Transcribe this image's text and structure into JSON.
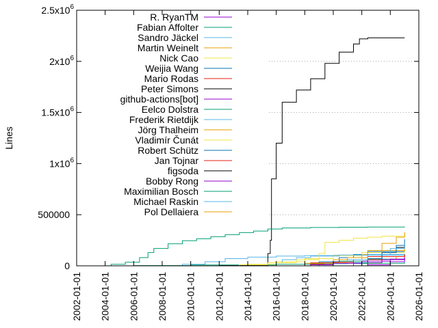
{
  "chart_data": {
    "type": "line",
    "title": "",
    "xlabel": "",
    "ylabel": "Lines",
    "x_ticks": [
      "2002-01-01",
      "2004-01-01",
      "2006-01-01",
      "2008-01-01",
      "2010-01-01",
      "2012-01-01",
      "2014-01-01",
      "2016-01-01",
      "2018-01-01",
      "2020-01-01",
      "2022-01-01",
      "2024-01-01",
      "2026-01-01"
    ],
    "y_ticks": [
      {
        "value": 0,
        "base": "0",
        "sup": ""
      },
      {
        "value": 500000,
        "base": "500000",
        "sup": ""
      },
      {
        "value": 1000000,
        "base": "1x10",
        "sup": "6"
      },
      {
        "value": 1500000,
        "base": "1.5x10",
        "sup": "6"
      },
      {
        "value": 2000000,
        "base": "2x10",
        "sup": "6"
      },
      {
        "value": 2500000,
        "base": "2.5x10",
        "sup": "6"
      }
    ],
    "xlim": [
      "2002-01-01",
      "2026-01-01"
    ],
    "ylim": [
      0,
      2500000
    ],
    "grid": "dotted, visible only right of the legend",
    "legend_position": "top-left (right-aligned labels)",
    "series": [
      {
        "name": "R. RyanTM",
        "color": "#9400d3",
        "points": [
          [
            "2017-01-01",
            0
          ],
          [
            "2018-06-01",
            10000
          ],
          [
            "2020-01-01",
            25000
          ],
          [
            "2022-01-01",
            45000
          ],
          [
            "2024-01-01",
            65000
          ],
          [
            "2025-01-01",
            80000
          ]
        ]
      },
      {
        "name": "Fabian Affolter",
        "color": "#009e73",
        "points": [
          [
            "2003-06-01",
            0
          ],
          [
            "2004-06-01",
            15000
          ],
          [
            "2005-06-01",
            35000
          ],
          [
            "2006-06-01",
            80000
          ],
          [
            "2007-01-01",
            130000
          ],
          [
            "2007-06-01",
            170000
          ],
          [
            "2008-06-01",
            215000
          ],
          [
            "2009-06-01",
            245000
          ],
          [
            "2010-06-01",
            265000
          ],
          [
            "2011-06-01",
            285000
          ],
          [
            "2012-06-01",
            305000
          ],
          [
            "2013-06-01",
            325000
          ],
          [
            "2014-06-01",
            340000
          ],
          [
            "2015-06-01",
            360000
          ],
          [
            "2016-06-01",
            370000
          ],
          [
            "2018-06-01",
            375000
          ],
          [
            "2020-06-01",
            378000
          ],
          [
            "2022-06-01",
            380000
          ],
          [
            "2025-01-01",
            383000
          ]
        ]
      },
      {
        "name": "Sandro Jäckel",
        "color": "#56b4e9",
        "points": [
          [
            "2018-01-01",
            0
          ],
          [
            "2019-06-01",
            20000
          ],
          [
            "2021-01-01",
            60000
          ],
          [
            "2022-06-01",
            110000
          ],
          [
            "2024-01-01",
            170000
          ],
          [
            "2025-01-01",
            220000
          ]
        ]
      },
      {
        "name": "Martin Weinelt",
        "color": "#e69f00",
        "points": [
          [
            "2018-06-01",
            0
          ],
          [
            "2020-01-01",
            30000
          ],
          [
            "2021-01-01",
            80000
          ],
          [
            "2022-06-01",
            150000
          ],
          [
            "2023-06-01",
            220000
          ],
          [
            "2024-06-01",
            280000
          ],
          [
            "2025-01-01",
            330000
          ]
        ]
      },
      {
        "name": "Nick Cao",
        "color": "#f0e442",
        "points": [
          [
            "2012-06-01",
            0
          ],
          [
            "2013-06-01",
            10000
          ],
          [
            "2015-06-01",
            30000
          ],
          [
            "2017-06-01",
            60000
          ],
          [
            "2019-01-01",
            120000
          ],
          [
            "2019-06-01",
            230000
          ],
          [
            "2020-06-01",
            250000
          ],
          [
            "2021-06-01",
            270000
          ],
          [
            "2022-06-01",
            280000
          ],
          [
            "2023-06-01",
            290000
          ],
          [
            "2025-01-01",
            310000
          ]
        ]
      },
      {
        "name": "Weijia Wang",
        "color": "#0072b2",
        "points": [
          [
            "2020-01-01",
            0
          ],
          [
            "2021-06-01",
            30000
          ],
          [
            "2022-06-01",
            70000
          ],
          [
            "2023-06-01",
            130000
          ],
          [
            "2024-06-01",
            200000
          ],
          [
            "2025-01-01",
            260000
          ]
        ]
      },
      {
        "name": "Mario Rodas",
        "color": "#e51e10",
        "points": [
          [
            "2017-01-01",
            0
          ],
          [
            "2018-06-01",
            15000
          ],
          [
            "2020-01-01",
            35000
          ],
          [
            "2021-06-01",
            60000
          ],
          [
            "2023-06-01",
            90000
          ],
          [
            "2025-01-01",
            110000
          ]
        ]
      },
      {
        "name": "Peter Simons",
        "color": "#000000",
        "points": [
          [
            "2008-01-01",
            0
          ],
          [
            "2012-01-01",
            3000
          ],
          [
            "2015-06-01",
            120000
          ],
          [
            "2015-08-01",
            250000
          ],
          [
            "2015-09-01",
            850000
          ],
          [
            "2016-01-01",
            1200000
          ],
          [
            "2016-06-01",
            1600000
          ],
          [
            "2017-06-01",
            1720000
          ],
          [
            "2018-06-01",
            1830000
          ],
          [
            "2019-06-01",
            1980000
          ],
          [
            "2020-06-01",
            2090000
          ],
          [
            "2021-06-01",
            2170000
          ],
          [
            "2021-11-01",
            2220000
          ],
          [
            "2022-06-01",
            2230000
          ],
          [
            "2025-01-01",
            2230000
          ]
        ]
      },
      {
        "name": "github-actions[bot]",
        "color": "#9400d3",
        "points": [
          [
            "2021-01-01",
            0
          ],
          [
            "2022-06-01",
            10000
          ],
          [
            "2024-01-01",
            40000
          ],
          [
            "2025-01-01",
            60000
          ]
        ]
      },
      {
        "name": "Eelco Dolstra",
        "color": "#009e73",
        "points": [
          [
            "2004-01-01",
            0
          ],
          [
            "2006-01-01",
            3000
          ],
          [
            "2010-01-01",
            8000
          ],
          [
            "2016-01-01",
            15000
          ],
          [
            "2020-01-01",
            25000
          ],
          [
            "2025-01-01",
            35000
          ]
        ]
      },
      {
        "name": "Frederik Rietdijk",
        "color": "#56b4e9",
        "points": [
          [
            "2014-06-01",
            0
          ],
          [
            "2015-06-01",
            30000
          ],
          [
            "2016-06-01",
            60000
          ],
          [
            "2017-06-01",
            80000
          ],
          [
            "2018-06-01",
            95000
          ],
          [
            "2020-06-01",
            105000
          ],
          [
            "2022-06-01",
            110000
          ],
          [
            "2025-01-01",
            115000
          ]
        ]
      },
      {
        "name": "Jörg Thalheim",
        "color": "#e69f00",
        "points": [
          [
            "2016-01-01",
            0
          ],
          [
            "2018-01-01",
            25000
          ],
          [
            "2020-01-01",
            60000
          ],
          [
            "2022-01-01",
            110000
          ],
          [
            "2023-06-01",
            150000
          ],
          [
            "2025-01-01",
            180000
          ]
        ]
      },
      {
        "name": "Vladimír Čunát",
        "color": "#f0e442",
        "points": [
          [
            "2012-01-01",
            0
          ],
          [
            "2014-01-01",
            15000
          ],
          [
            "2016-01-01",
            40000
          ],
          [
            "2018-01-01",
            70000
          ],
          [
            "2020-01-01",
            100000
          ],
          [
            "2022-01-01",
            130000
          ],
          [
            "2025-01-01",
            160000
          ]
        ]
      },
      {
        "name": "Robert Schütz",
        "color": "#0072b2",
        "points": [
          [
            "2017-06-01",
            0
          ],
          [
            "2019-01-01",
            40000
          ],
          [
            "2020-06-01",
            80000
          ],
          [
            "2021-06-01",
            110000
          ],
          [
            "2022-06-01",
            140000
          ],
          [
            "2025-01-01",
            150000
          ]
        ]
      },
      {
        "name": "Jan Tojnar",
        "color": "#e51e10",
        "points": [
          [
            "2016-06-01",
            0
          ],
          [
            "2018-06-01",
            30000
          ],
          [
            "2020-06-01",
            60000
          ],
          [
            "2022-06-01",
            90000
          ],
          [
            "2025-01-01",
            115000
          ]
        ]
      },
      {
        "name": "figsoda",
        "color": "#000000",
        "points": [
          [
            "2021-06-01",
            0
          ],
          [
            "2022-06-01",
            60000
          ],
          [
            "2023-06-01",
            130000
          ],
          [
            "2024-06-01",
            180000
          ],
          [
            "2025-01-01",
            210000
          ]
        ]
      },
      {
        "name": "Bobby Rong",
        "color": "#9400d3",
        "points": [
          [
            "2020-06-01",
            0
          ],
          [
            "2022-01-01",
            30000
          ],
          [
            "2023-06-01",
            60000
          ],
          [
            "2025-01-01",
            85000
          ]
        ]
      },
      {
        "name": "Maximilian Bosch",
        "color": "#009e73",
        "points": [
          [
            "2016-06-01",
            0
          ],
          [
            "2018-06-01",
            20000
          ],
          [
            "2020-06-01",
            45000
          ],
          [
            "2022-06-01",
            65000
          ],
          [
            "2025-01-01",
            80000
          ]
        ]
      },
      {
        "name": "Michael Raskin",
        "color": "#56b4e9",
        "points": [
          [
            "2008-01-01",
            0
          ],
          [
            "2009-06-01",
            15000
          ],
          [
            "2011-01-01",
            40000
          ],
          [
            "2012-06-01",
            70000
          ],
          [
            "2014-01-01",
            85000
          ],
          [
            "2016-01-01",
            95000
          ],
          [
            "2018-01-01",
            100000
          ],
          [
            "2020-01-01",
            104000
          ],
          [
            "2025-01-01",
            110000
          ]
        ]
      },
      {
        "name": "Pol Dellaiera",
        "color": "#e69f00",
        "points": [
          [
            "2020-06-01",
            0
          ],
          [
            "2022-01-01",
            25000
          ],
          [
            "2023-06-01",
            60000
          ],
          [
            "2024-06-01",
            90000
          ],
          [
            "2025-01-01",
            110000
          ]
        ]
      }
    ]
  }
}
